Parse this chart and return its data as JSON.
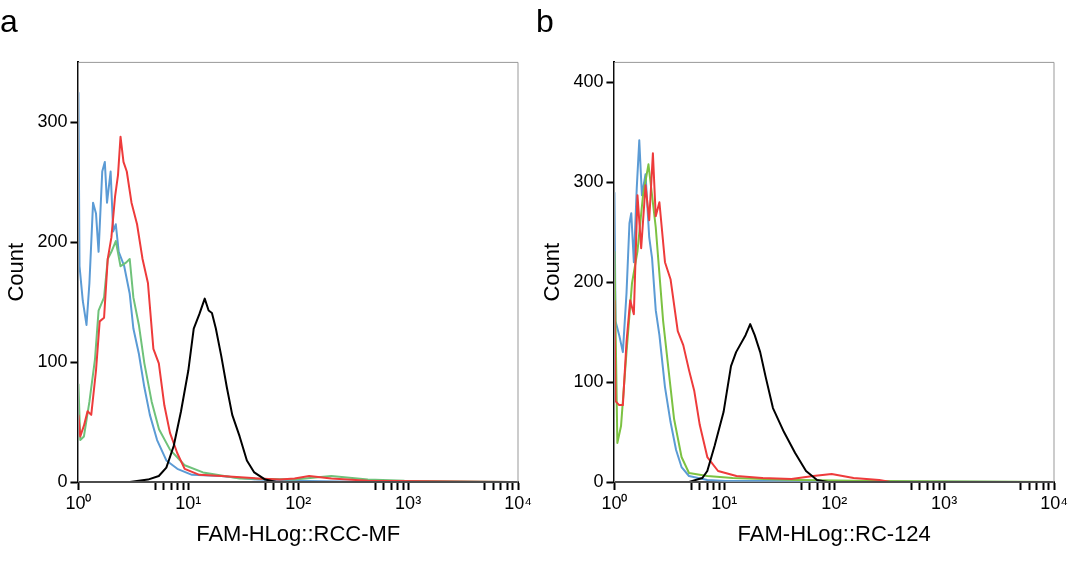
{
  "chart_data": [
    {
      "type": "line",
      "title": "a",
      "xlabel": "FAM-HLog::RCC-MF",
      "ylabel": "Count",
      "log": "x",
      "grid": false,
      "legend": false,
      "marker": "none",
      "xlim": [
        1,
        10000
      ],
      "ylim": [
        0,
        350
      ],
      "xticks": [
        {
          "value": 1,
          "label": "10⁰"
        },
        {
          "value": 5,
          "label": null
        },
        {
          "value": 6,
          "label": null
        },
        {
          "value": 7,
          "label": null
        },
        {
          "value": 8,
          "label": null
        },
        {
          "value": 9,
          "label": null
        },
        {
          "value": 10,
          "label": "10¹"
        },
        {
          "value": 50,
          "label": null
        },
        {
          "value": 60,
          "label": null
        },
        {
          "value": 70,
          "label": null
        },
        {
          "value": 80,
          "label": null
        },
        {
          "value": 90,
          "label": null
        },
        {
          "value": 100,
          "label": "10²"
        },
        {
          "value": 500,
          "label": null
        },
        {
          "value": 600,
          "label": null
        },
        {
          "value": 700,
          "label": null
        },
        {
          "value": 800,
          "label": null
        },
        {
          "value": 900,
          "label": null
        },
        {
          "value": 1000,
          "label": "10³"
        },
        {
          "value": 5000,
          "label": null
        },
        {
          "value": 6000,
          "label": null
        },
        {
          "value": 7000,
          "label": null
        },
        {
          "value": 8000,
          "label": null
        },
        {
          "value": 9000,
          "label": null
        },
        {
          "value": 10000,
          "label": "10⁴"
        }
      ],
      "yticks": [
        0,
        100,
        200,
        300
      ],
      "series": [
        {
          "color": "#5b9bd5",
          "x": [
            1,
            1.023,
            1.096,
            1.184,
            1.259,
            1.359,
            1.445,
            1.525,
            1.647,
            1.738,
            1.82,
            1.963,
            2.072,
            2.188,
            2.326,
            2.61,
            2.929,
            3.162,
            3.548,
            3.981,
            4.467,
            5.197,
            6.31,
            7.94,
            10.8,
            19.95,
            43,
            92.6,
            430,
            10000
          ],
          "values": [
            325,
            180,
            151,
            131,
            166,
            233,
            224,
            192,
            259,
            267,
            233,
            259,
            209,
            215,
            192,
            180,
            157,
            128,
            107,
            79,
            56,
            35,
            18,
            11,
            6,
            5,
            2,
            1,
            0,
            0
          ]
        },
        {
          "color": "#6fc27a",
          "x": [
            1,
            1.039,
            1.122,
            1.259,
            1.413,
            1.525,
            1.711,
            1.848,
            1.995,
            2.188,
            2.415,
            2.712,
            2.929,
            3.162,
            3.548,
            3.981,
            4.64,
            5.41,
            6.81,
            9.26,
            13.6,
            29.3,
            92.6,
            200,
            430,
            926,
            10000
          ],
          "values": [
            82,
            35,
            38,
            67,
            102,
            143,
            154,
            186,
            192,
            201,
            180,
            183,
            186,
            154,
            131,
            99,
            67,
            44,
            27,
            14,
            8,
            3,
            2,
            5,
            2,
            1,
            0
          ]
        },
        {
          "color": "#ee3b3b",
          "x": [
            1,
            1.039,
            1.122,
            1.211,
            1.308,
            1.445,
            1.561,
            1.711,
            1.848,
            1.995,
            2.154,
            2.291,
            2.415,
            2.57,
            2.754,
            3.041,
            3.415,
            3.831,
            4.29,
            4.81,
            5.39,
            6.05,
            6.81,
            7.94,
            9.26,
            12.6,
            19.95,
            43,
            68.1,
            92.6,
            125.9,
            200,
            430,
            10000
          ],
          "values": [
            56,
            38,
            47,
            59,
            56,
            93,
            134,
            137,
            186,
            204,
            238,
            256,
            288,
            267,
            259,
            233,
            215,
            186,
            166,
            111,
            99,
            64,
            41,
            24,
            11,
            6,
            5,
            3,
            2,
            3,
            5,
            3,
            1,
            0
          ]
        },
        {
          "color": "#000000",
          "x": [
            1,
            2.929,
            4.29,
            5.39,
            6.31,
            7.36,
            8.58,
            10,
            11.2,
            12.6,
            14.1,
            15.3,
            16.4,
            17.8,
            19.95,
            22.4,
            25.1,
            29.3,
            34.1,
            39.8,
            50.1,
            63.1,
            10000
          ],
          "values": [
            0,
            0,
            2,
            5,
            12,
            30,
            59,
            93,
            128,
            140,
            153,
            143,
            141,
            128,
            105,
            79,
            56,
            38,
            18,
            8,
            2,
            0,
            0
          ]
        }
      ]
    },
    {
      "type": "line",
      "title": "b",
      "xlabel": "FAM-HLog::RC-124",
      "ylabel": "Count",
      "log": "x",
      "grid": false,
      "legend": false,
      "marker": "none",
      "xlim": [
        1,
        10000
      ],
      "ylim": [
        0,
        420
      ],
      "xticks": [
        {
          "value": 1,
          "label": "10⁰"
        },
        {
          "value": 5,
          "label": null
        },
        {
          "value": 6,
          "label": null
        },
        {
          "value": 7,
          "label": null
        },
        {
          "value": 8,
          "label": null
        },
        {
          "value": 9,
          "label": null
        },
        {
          "value": 10,
          "label": "10¹"
        },
        {
          "value": 50,
          "label": null
        },
        {
          "value": 60,
          "label": null
        },
        {
          "value": 70,
          "label": null
        },
        {
          "value": 80,
          "label": null
        },
        {
          "value": 90,
          "label": null
        },
        {
          "value": 100,
          "label": "10²"
        },
        {
          "value": 500,
          "label": null
        },
        {
          "value": 600,
          "label": null
        },
        {
          "value": 700,
          "label": null
        },
        {
          "value": 800,
          "label": null
        },
        {
          "value": 900,
          "label": null
        },
        {
          "value": 1000,
          "label": "10³"
        },
        {
          "value": 5000,
          "label": null
        },
        {
          "value": 6000,
          "label": null
        },
        {
          "value": 7000,
          "label": null
        },
        {
          "value": 8000,
          "label": null
        },
        {
          "value": 9000,
          "label": null
        },
        {
          "value": 10000,
          "label": "10⁴"
        }
      ],
      "yticks": [
        0,
        100,
        200,
        300,
        400
      ],
      "series": [
        {
          "color": "#5b9bd5",
          "x": [
            1,
            1.023,
            1.105,
            1.193,
            1.288,
            1.37,
            1.423,
            1.502,
            1.596,
            1.683,
            1.778,
            1.919,
            2.072,
            2.2,
            2.376,
            2.566,
            2.884,
            3.24,
            3.64,
            4.08,
            4.77,
            7,
            10.2,
            10000
          ],
          "values": [
            290,
            161,
            147,
            130,
            189,
            259,
            269,
            220,
            294,
            342,
            287,
            308,
            245,
            224,
            172,
            147,
            95,
            60,
            32,
            15,
            6,
            2,
            1,
            0
          ]
        },
        {
          "color": "#7cc242",
          "x": [
            1,
            1.063,
            1.148,
            1.288,
            1.445,
            1.621,
            1.82,
            2.04,
            2.2,
            2.376,
            2.775,
            3.11,
            3.49,
            4.08,
            4.77,
            7,
            11.9,
            47.5,
            220,
            10000
          ],
          "values": [
            231,
            39,
            56,
            130,
            199,
            231,
            287,
            318,
            287,
            255,
            161,
            112,
            63,
            25,
            9,
            6,
            4,
            2,
            1,
            0
          ]
        },
        {
          "color": "#ee3b3b",
          "x": [
            1,
            1.023,
            1.105,
            1.193,
            1.288,
            1.391,
            1.502,
            1.621,
            1.751,
            1.919,
            2.072,
            2.239,
            2.376,
            2.566,
            2.884,
            3.24,
            3.77,
            4.23,
            4.77,
            5.33,
            5.98,
            7,
            8.77,
            12.9,
            22.1,
            40.8,
            64.4,
            94.8,
            150,
            257,
            325,
            10000
          ],
          "values": [
            182,
            81,
            77,
            77,
            140,
            182,
            168,
            287,
            234,
            297,
            262,
            329,
            266,
            280,
            220,
            203,
            151,
            137,
            112,
            91,
            57,
            25,
            11,
            6,
            4,
            3,
            6,
            8,
            4,
            2,
            0,
            0
          ]
        },
        {
          "color": "#000000",
          "x": [
            1,
            4.77,
            6.31,
            7,
            8.15,
            9.84,
            11.5,
            12.8,
            15.6,
            17.2,
            18.9,
            21.2,
            23.8,
            27.7,
            34.9,
            44.1,
            55.4,
            69.8,
            87.7,
            10000
          ],
          "values": [
            0,
            0,
            4,
            11,
            36,
            70,
            116,
            130,
            147,
            158,
            147,
            130,
            105,
            74,
            50,
            29,
            11,
            2,
            0,
            0
          ]
        }
      ]
    }
  ]
}
